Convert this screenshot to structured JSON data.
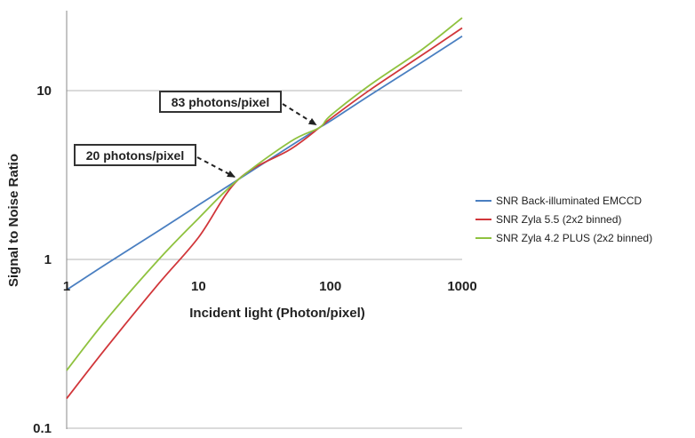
{
  "chart_data": {
    "type": "line",
    "xscale": "log",
    "yscale": "log",
    "xlim": [
      1,
      1000
    ],
    "ylim": [
      0.1,
      20
    ],
    "xlabel": "Incident light (Photon/pixel)",
    "ylabel": "Signal to Noise Ratio",
    "x_ticks": [
      "1",
      "10",
      "100",
      "1000"
    ],
    "y_ticks": [
      "0.1",
      "1",
      "10"
    ],
    "grid": "horizontal at decades",
    "legend_position": "right",
    "series": [
      {
        "name": "SNR Back-illuminated EMCCD",
        "color": "#4a7fc1",
        "x": [
          1,
          2,
          5,
          10,
          20,
          50,
          83,
          100,
          200,
          500,
          1000
        ],
        "y": [
          0.66,
          0.94,
          1.48,
          2.1,
          2.97,
          4.7,
          6.05,
          6.6,
          9.4,
          14.8,
          21
        ]
      },
      {
        "name": "SNR Zyla 5.5 (2x2 binned)",
        "color": "#d1363a",
        "x": [
          1,
          2,
          5,
          10,
          20,
          50,
          83,
          100,
          200,
          500,
          1000
        ],
        "y": [
          0.15,
          0.3,
          0.72,
          1.35,
          2.97,
          4.5,
          6.05,
          6.8,
          10.1,
          16.3,
          23.5
        ]
      },
      {
        "name": "SNR Zyla 4.2 PLUS (2x2 binned)",
        "color": "#8fc23f",
        "x": [
          1,
          2,
          5,
          10,
          20,
          50,
          83,
          100,
          200,
          500,
          1000
        ],
        "y": [
          0.22,
          0.44,
          1.0,
          1.75,
          2.97,
          5.0,
          6.05,
          7.1,
          10.8,
          17.6,
          27
        ]
      }
    ],
    "annotations": [
      {
        "text": "83 photons/pixel",
        "x": 83,
        "y": 6.05
      },
      {
        "text": "20 photons/pixel",
        "x": 20,
        "y": 2.97
      }
    ]
  }
}
